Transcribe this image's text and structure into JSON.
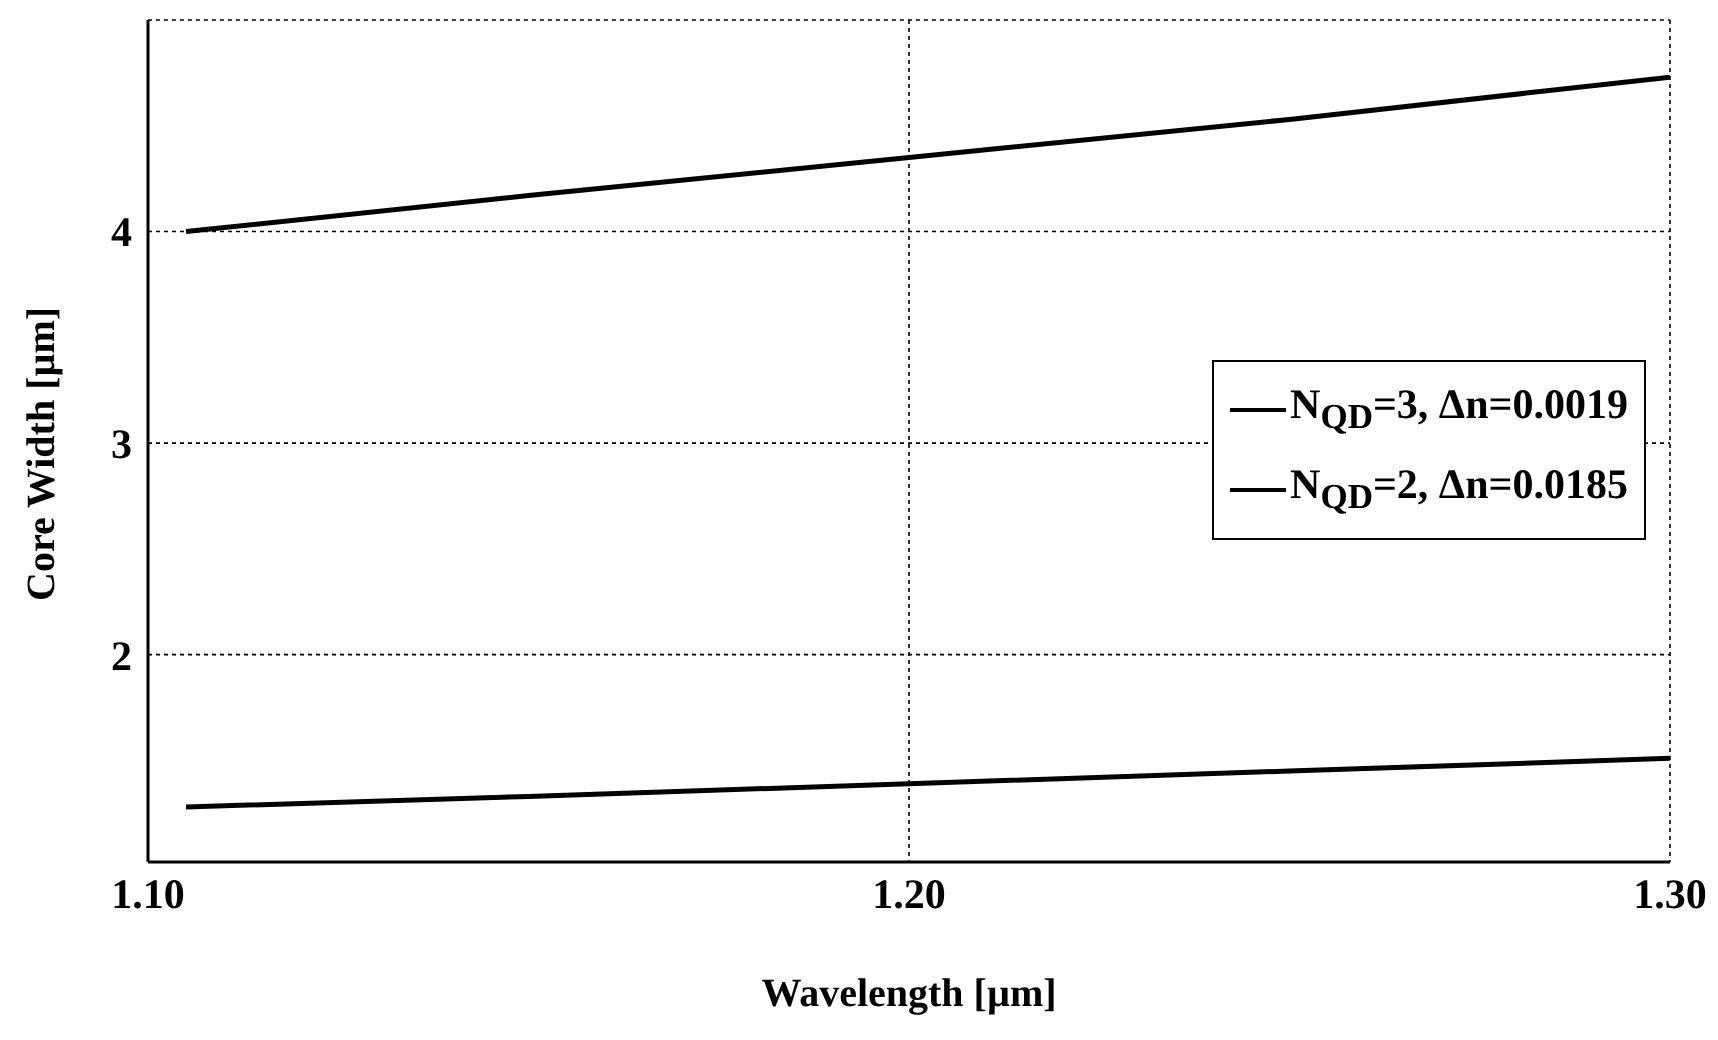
{
  "chart_data": {
    "type": "line",
    "xlabel": "Wavelength [µm]",
    "ylabel": "Core Width [µm]",
    "x": [
      1.105,
      1.15,
      1.2,
      1.25,
      1.3
    ],
    "series": [
      {
        "name": "N$_{QD}$=3, Δn=0.0019",
        "color": "#000000",
        "values": [
          4.0,
          4.17,
          4.35,
          4.53,
          4.73
        ]
      },
      {
        "name": "N$_{QD}$=2, Δn=0.0185",
        "color": "#000000",
        "values": [
          1.28,
          1.33,
          1.39,
          1.45,
          1.51
        ]
      }
    ],
    "xlim": [
      1.1,
      1.3
    ],
    "xticks": [
      {
        "value": 1.1,
        "label": "1.10"
      },
      {
        "value": 1.2,
        "label": "1.20"
      },
      {
        "value": 1.3,
        "label": "1.30"
      }
    ],
    "ylim": [
      1.02,
      5
    ],
    "yticks": [
      2,
      3,
      4
    ],
    "grid": true,
    "legend": "right",
    "marker": "none",
    "line_style": "solid"
  }
}
